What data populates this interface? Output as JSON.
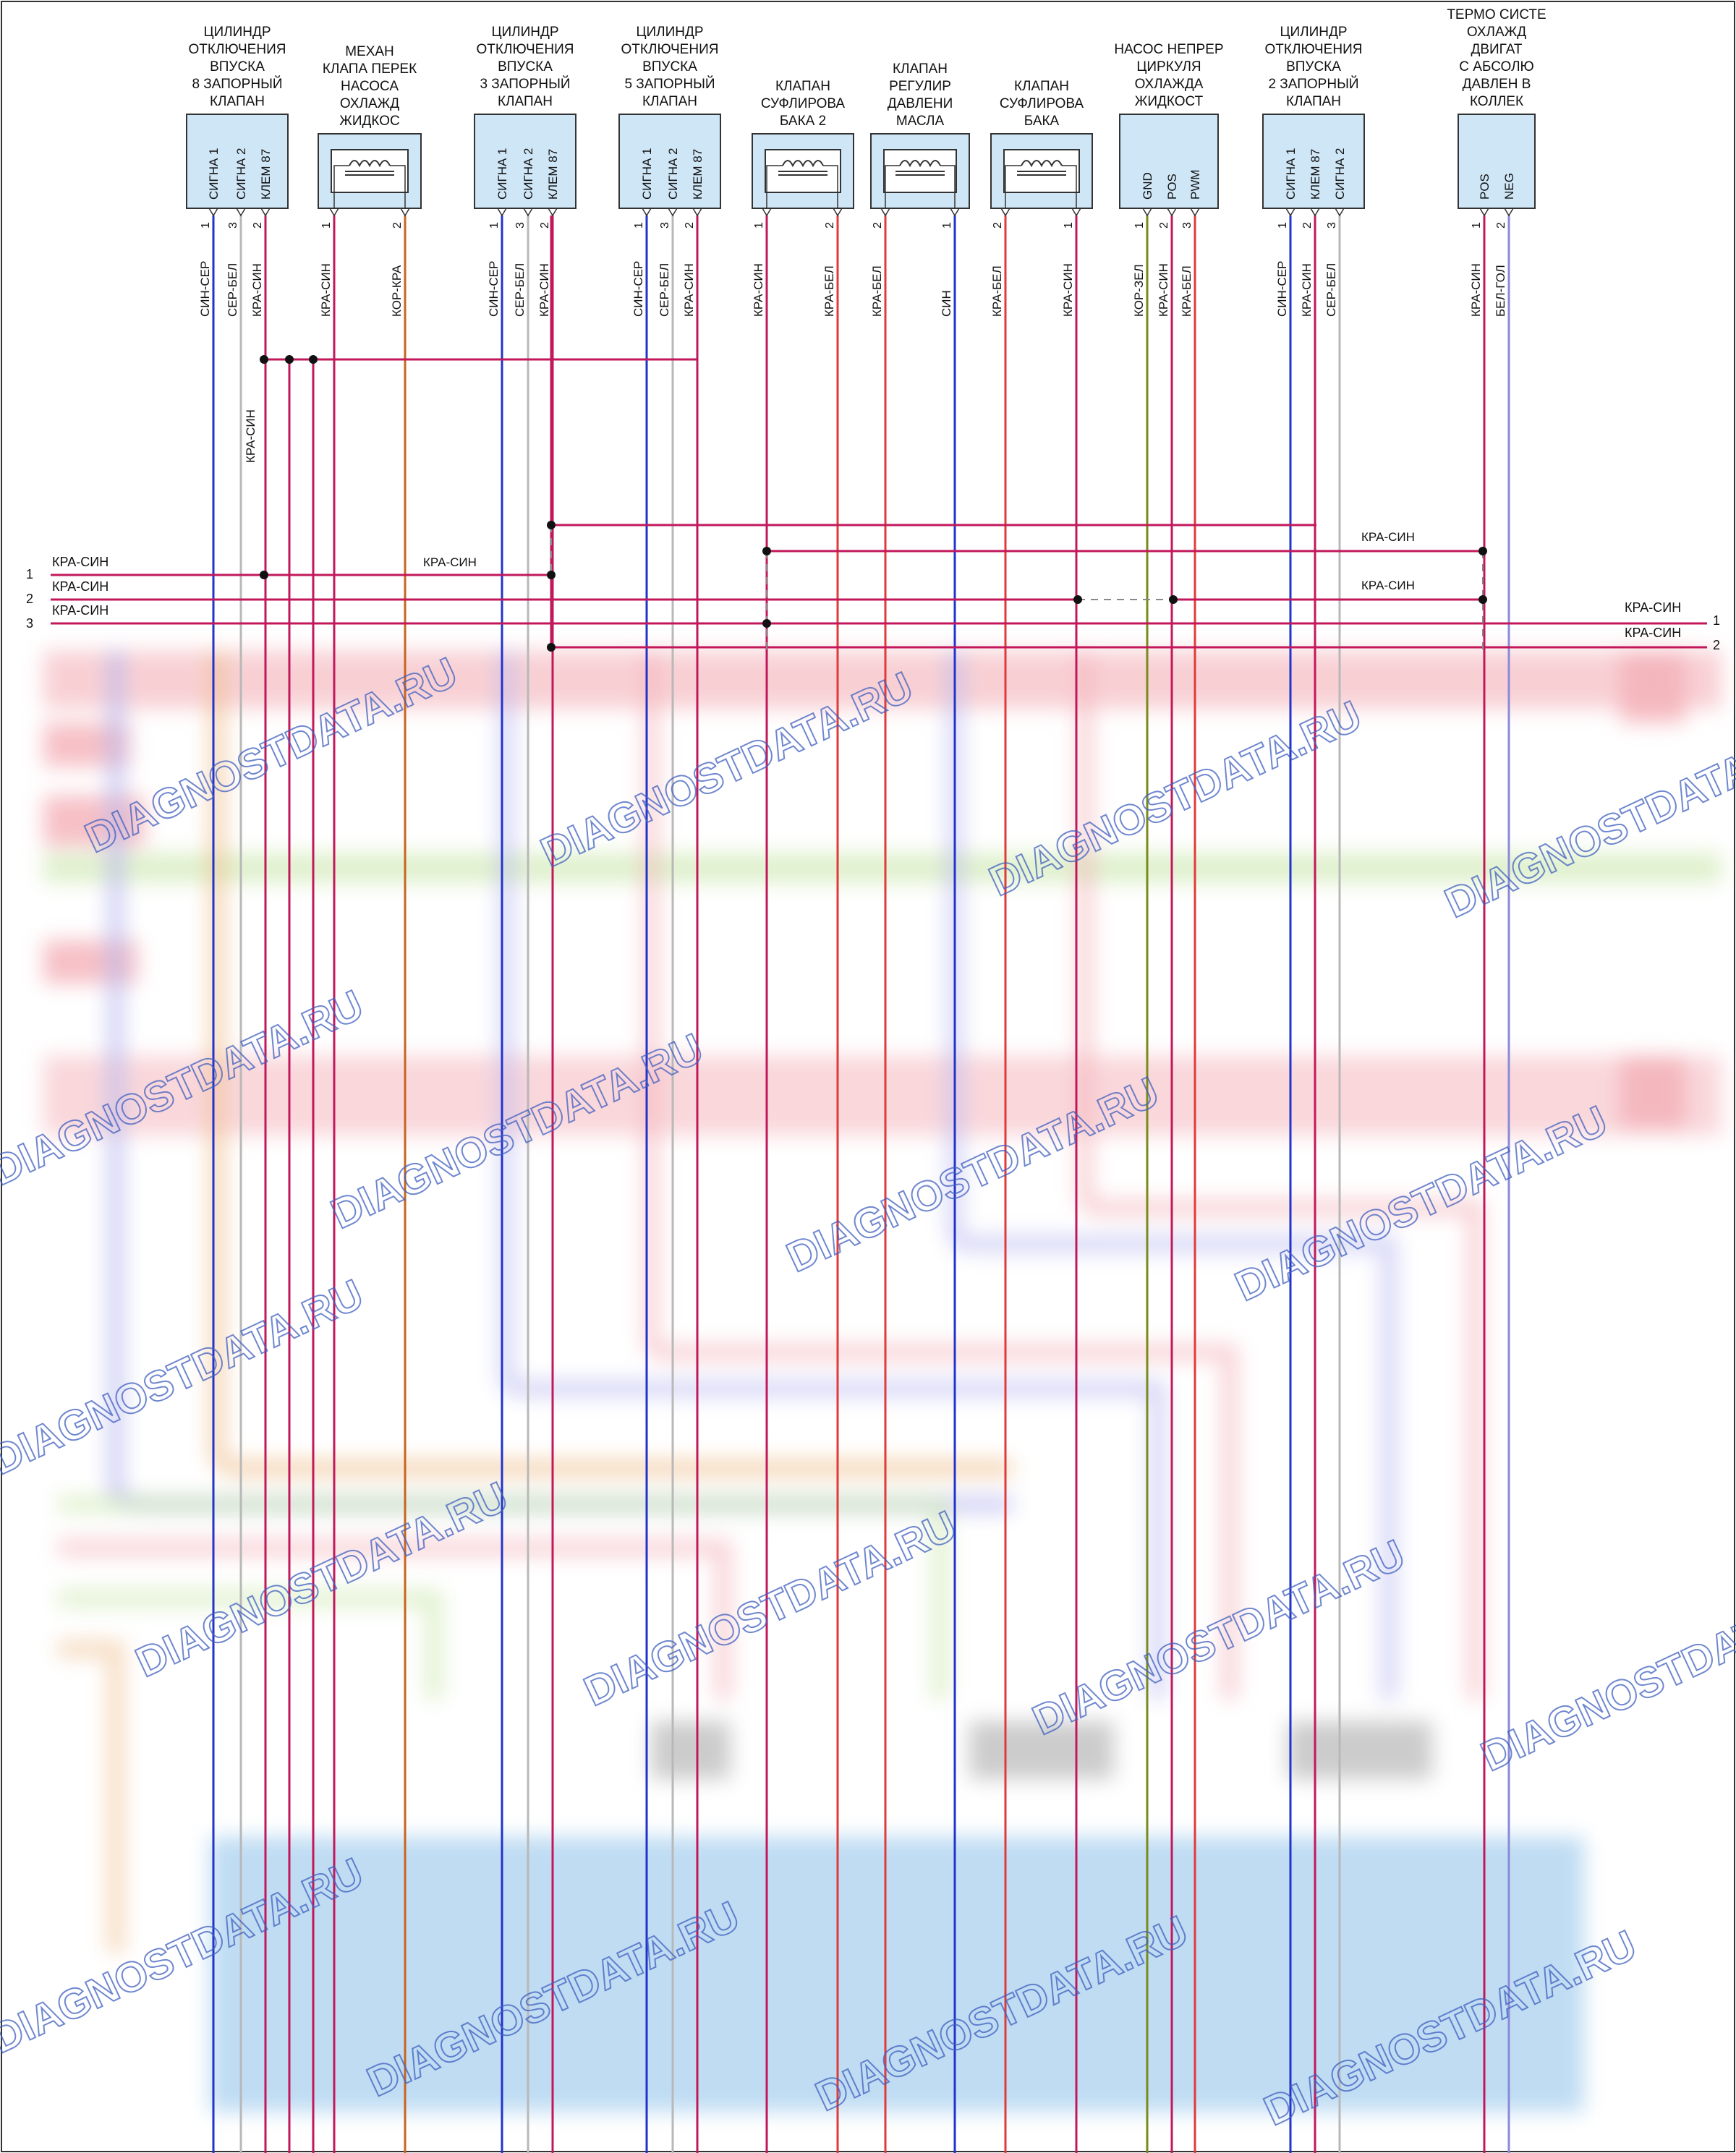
{
  "components": [
    {
      "id": "c1",
      "title": [
        "ЦИЛИНДР",
        "ОТКЛЮЧЕНИЯ",
        "ВПУСКА",
        "8 ЗАПОРНЫЙ",
        "КЛАПАН"
      ],
      "type": "box",
      "pins": [
        {
          "label": "СИГНА 1",
          "num": "1",
          "wire": "СИН-СЕР"
        },
        {
          "label": "СИГНА 2",
          "num": "3",
          "wire": "СЕР-БЕЛ"
        },
        {
          "label": "КЛЕМ 87",
          "num": "2",
          "wire": "КРА-СИН"
        }
      ]
    },
    {
      "id": "c2",
      "title": [
        "МЕХАН",
        "КЛАПА ПЕРЕК",
        "НАСОСА",
        "ОХЛАЖД",
        "ЖИДКОС"
      ],
      "type": "coil",
      "pins": [
        {
          "label": "",
          "num": "1",
          "wire": "КРА-СИН"
        },
        {
          "label": "",
          "num": "2",
          "wire": "КОР-КРА"
        }
      ]
    },
    {
      "id": "c3",
      "title": [
        "ЦИЛИНДР",
        "ОТКЛЮЧЕНИЯ",
        "ВПУСКА",
        "3 ЗАПОРНЫЙ",
        "КЛАПАН"
      ],
      "type": "box",
      "pins": [
        {
          "label": "СИГНА 1",
          "num": "1",
          "wire": "СИН-СЕР"
        },
        {
          "label": "СИГНА 2",
          "num": "3",
          "wire": "СЕР-БЕЛ"
        },
        {
          "label": "КЛЕМ 87",
          "num": "2",
          "wire": "КРА-СИН"
        }
      ]
    },
    {
      "id": "c4",
      "title": [
        "ЦИЛИНДР",
        "ОТКЛЮЧЕНИЯ",
        "ВПУСКА",
        "5 ЗАПОРНЫЙ",
        "КЛАПАН"
      ],
      "type": "box",
      "pins": [
        {
          "label": "СИГНА 1",
          "num": "1",
          "wire": "СИН-СЕР"
        },
        {
          "label": "СИГНА 2",
          "num": "3",
          "wire": "СЕР-БЕЛ"
        },
        {
          "label": "КЛЕМ 87",
          "num": "2",
          "wire": "КРА-СИН"
        }
      ]
    },
    {
      "id": "c5",
      "title": [
        "КЛАПАН",
        "СУФЛИРОВА",
        "БАКА 2"
      ],
      "type": "coil",
      "pins": [
        {
          "label": "",
          "num": "1",
          "wire": "КРА-СИН"
        },
        {
          "label": "",
          "num": "2",
          "wire": "КРА-БЕЛ"
        }
      ]
    },
    {
      "id": "c6",
      "title": [
        "КЛАПАН",
        "РЕГУЛИР",
        "ДАВЛЕНИ",
        "МАСЛА"
      ],
      "type": "coil",
      "pins": [
        {
          "label": "",
          "num": "2",
          "wire": "КРА-БЕЛ"
        },
        {
          "label": "",
          "num": "1",
          "wire": "СИН"
        }
      ]
    },
    {
      "id": "c7",
      "title": [
        "КЛАПАН",
        "СУФЛИРОВА",
        "БАКА"
      ],
      "type": "coil",
      "pins": [
        {
          "label": "",
          "num": "2",
          "wire": "КРА-БЕЛ"
        },
        {
          "label": "",
          "num": "1",
          "wire": "КРА-СИН"
        }
      ]
    },
    {
      "id": "c8",
      "title": [
        "НАСОС НЕПРЕР",
        "ЦИРКУЛЯ",
        "ОХЛАЖДА",
        "ЖИДКОСТ"
      ],
      "type": "box",
      "pins": [
        {
          "label": "GND",
          "num": "1",
          "wire": "КОР-ЗЕЛ"
        },
        {
          "label": "POS",
          "num": "2",
          "wire": "КРА-СИН"
        },
        {
          "label": "PWM",
          "num": "3",
          "wire": "КРА-БЕЛ"
        }
      ]
    },
    {
      "id": "c9",
      "title": [
        "ЦИЛИНДР",
        "ОТКЛЮЧЕНИЯ",
        "ВПУСКА",
        "2 ЗАПОРНЫЙ",
        "КЛАПАН"
      ],
      "type": "box",
      "pins": [
        {
          "label": "СИГНА 1",
          "num": "1",
          "wire": "СИН-СЕР"
        },
        {
          "label": "КЛЕМ 87",
          "num": "2",
          "wire": "КРА-СИН"
        },
        {
          "label": "СИГНА 2",
          "num": "3",
          "wire": "СЕР-БЕЛ"
        }
      ]
    },
    {
      "id": "c10",
      "title": [
        "ТЕРМО СИСТЕ",
        "ОХЛАЖД",
        "ДВИГАТ",
        "С АБСОЛЮ",
        "ДАВЛЕН В",
        "КОЛЛЕК"
      ],
      "type": "box",
      "pins": [
        {
          "label": "POS",
          "num": "1",
          "wire": "КРА-СИН"
        },
        {
          "label": "NEG",
          "num": "2",
          "wire": "БЕЛ-ГОЛ"
        }
      ]
    }
  ],
  "bus": {
    "vertical_label": "КРА-СИН",
    "mid_label": "КРА-СИН",
    "right_label_row1": "КРА-СИН",
    "right_label_row2": "КРА-СИН",
    "left_rows": [
      {
        "num": "1",
        "label": "КРА-СИН"
      },
      {
        "num": "2",
        "label": "КРА-СИН"
      },
      {
        "num": "3",
        "label": "КРА-СИН"
      }
    ],
    "right_rows": [
      {
        "num": "1",
        "label": "КРА-СИН"
      },
      {
        "num": "2",
        "label": "КРА-СИН"
      }
    ]
  },
  "watermark": "DIAGNOSTDATA.RU",
  "colors": {
    "red_blue": "#c2185b",
    "blue": "#2233cc",
    "grey": "#b8b8b8",
    "brown_red": "#c8641e",
    "red": "#e03a3a",
    "olive": "#7a8a1a",
    "grey_blue": "#8a8ad8",
    "ecu_fill": "#cfe6f7",
    "box_fill": "#cfe6f7"
  }
}
